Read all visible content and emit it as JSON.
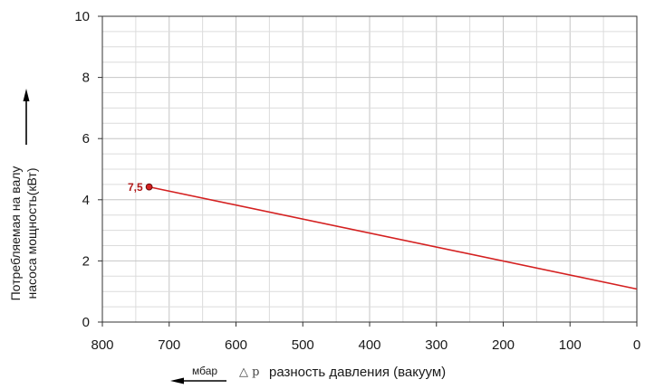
{
  "chart_data": {
    "type": "line",
    "ylabel_line1": "Потребляемая на валу",
    "ylabel_line2": "насоса мощность(кВт)",
    "xlabel": "разность давления (вакуум)",
    "delta_symbol": "△ p",
    "x_unit": "мбар",
    "xlim": [
      800,
      0
    ],
    "ylim": [
      0,
      10
    ],
    "x_ticks": [
      "800",
      "700",
      "600",
      "500",
      "400",
      "300",
      "200",
      "100",
      "0"
    ],
    "y_ticks": [
      "0",
      "2",
      "4",
      "6",
      "8",
      "10"
    ],
    "grid": true,
    "series": [
      {
        "color": "#d42020",
        "x": [
          730,
          0
        ],
        "y": [
          4.42,
          1.08
        ]
      }
    ],
    "annotation": {
      "text": "7,5",
      "x": 730,
      "y": 4.42
    }
  }
}
